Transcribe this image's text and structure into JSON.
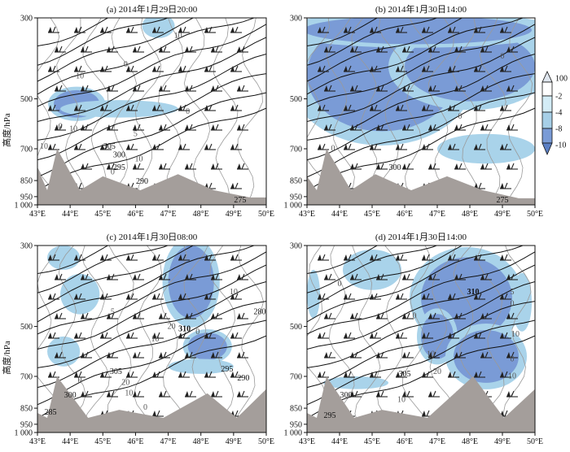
{
  "chart_data": [
    {
      "type": "contour",
      "title": "(a) 2014年1月29日20:00",
      "ylabel": "高度/hPa",
      "x_ticks": [
        "43°E",
        "44°E",
        "45°E",
        "46°E",
        "47°E",
        "48°E",
        "49°E",
        "50°E"
      ],
      "y_ticks": [
        "300",
        "500",
        "700",
        "850",
        "950",
        "1 000"
      ],
      "xlim": [
        43,
        50
      ],
      "ylim_hpa": [
        1000,
        300
      ],
      "shaded_regions": [
        {
          "center": [
            44.2,
            520
          ],
          "radius": [
            0.7,
            55
          ],
          "level": -8
        },
        {
          "center": [
            45.5,
            540
          ],
          "radius": [
            1.8,
            35
          ],
          "level": -4
        },
        {
          "center": [
            46.7,
            320
          ],
          "radius": [
            0.5,
            30
          ],
          "level": -4
        },
        {
          "center": [
            44.9,
            990
          ],
          "radius": [
            0.6,
            20
          ],
          "level": -8
        }
      ],
      "theta_labels": [
        {
          "text": "305",
          "at": [
            45.2,
            700
          ]
        },
        {
          "text": "300",
          "at": [
            45.5,
            740
          ]
        },
        {
          "text": "295",
          "at": [
            45.5,
            800
          ]
        },
        {
          "text": "290",
          "at": [
            46.2,
            870
          ]
        },
        {
          "text": "275",
          "at": [
            49.2,
            985
          ]
        }
      ],
      "omega_labels": [
        {
          "text": "10",
          "at": [
            47.3,
            350
          ]
        },
        {
          "text": "0",
          "at": [
            45.7,
            420
          ]
        },
        {
          "text": "10",
          "at": [
            44.3,
            450
          ]
        },
        {
          "text": "0",
          "at": [
            47.6,
            560
          ]
        },
        {
          "text": "0",
          "at": [
            43.7,
            620
          ]
        },
        {
          "text": "10",
          "at": [
            44.1,
            630
          ]
        },
        {
          "text": "5",
          "at": [
            46.0,
            650
          ]
        },
        {
          "text": "10",
          "at": [
            43.2,
            700
          ]
        },
        {
          "text": "10",
          "at": [
            46.1,
            760
          ]
        },
        {
          "text": "0",
          "at": [
            45.3,
            820
          ]
        }
      ],
      "terrain_peaks": [
        [
          43.0,
          790
        ],
        [
          43.6,
          700
        ],
        [
          45.0,
          830
        ],
        [
          47.3,
          820
        ],
        [
          49.5,
          955
        ]
      ]
    },
    {
      "type": "contour",
      "title": "(b) 2014年1月30日14:00",
      "ylabel": "",
      "x_ticks": [
        "43°E",
        "44°E",
        "45°E",
        "46°E",
        "47°E",
        "48°E",
        "49°E",
        "50°E"
      ],
      "y_ticks": [
        "300",
        "500",
        "700",
        "850",
        "950",
        "1 000"
      ],
      "xlim": [
        43,
        50
      ],
      "ylim_hpa": [
        1000,
        300
      ],
      "shaded_regions": [
        {
          "center": [
            45.3,
            440
          ],
          "radius": [
            2.3,
            190
          ],
          "level": -8
        },
        {
          "center": [
            48.0,
            420
          ],
          "radius": [
            2.0,
            90
          ],
          "level": -8
        },
        {
          "center": [
            46.4,
            330
          ],
          "radius": [
            3.5,
            35
          ],
          "level": -8
        },
        {
          "center": [
            48.5,
            700
          ],
          "radius": [
            1.5,
            70
          ],
          "level": -4
        },
        {
          "center": [
            48.5,
            990
          ],
          "radius": [
            0.8,
            20
          ],
          "level": -8
        }
      ],
      "theta_labels": [
        {
          "text": "300",
          "at": [
            45.7,
            800
          ]
        },
        {
          "text": "275",
          "at": [
            49.0,
            985
          ]
        }
      ],
      "omega_labels": [
        {
          "text": "0",
          "at": [
            49.0,
            400
          ]
        },
        {
          "text": "0",
          "at": [
            47.7,
            580
          ]
        },
        {
          "text": "0",
          "at": [
            43.8,
            710
          ]
        }
      ],
      "terrain_peaks": [
        [
          43.0,
          830
        ],
        [
          43.6,
          700
        ],
        [
          45.1,
          820
        ],
        [
          47.3,
          830
        ],
        [
          49.5,
          960
        ]
      ]
    },
    {
      "type": "contour",
      "title": "(c) 2014年1月30日08:00",
      "ylabel": "高度/hPa",
      "x_ticks": [
        "43°E",
        "44°E",
        "45°E",
        "46°E",
        "47°E",
        "48°E",
        "49°E",
        "50°E"
      ],
      "y_ticks": [
        "300",
        "500",
        "700",
        "850",
        "950",
        "1 000"
      ],
      "xlim": [
        43,
        50
      ],
      "ylim_hpa": [
        1000,
        300
      ],
      "shaded_regions": [
        {
          "center": [
            43.8,
            330
          ],
          "radius": [
            0.5,
            30
          ],
          "level": -4
        },
        {
          "center": [
            44.3,
            420
          ],
          "radius": [
            0.6,
            50
          ],
          "level": -4
        },
        {
          "center": [
            43.8,
            600
          ],
          "radius": [
            0.5,
            60
          ],
          "level": -4
        },
        {
          "center": [
            47.7,
            390
          ],
          "radius": [
            0.7,
            90
          ],
          "level": -8
        },
        {
          "center": [
            48.2,
            580
          ],
          "radius": [
            0.6,
            55
          ],
          "level": -8
        },
        {
          "center": [
            48.0,
            660
          ],
          "radius": [
            1.0,
            30
          ],
          "level": -4
        }
      ],
      "theta_labels": [
        {
          "text": "305",
          "at": [
            45.4,
            690
          ]
        },
        {
          "text": "300",
          "at": [
            44.0,
            800
          ]
        },
        {
          "text": "295",
          "at": [
            48.8,
            680
          ]
        },
        {
          "text": "290",
          "at": [
            49.3,
            720
          ]
        },
        {
          "text": "285",
          "at": [
            43.4,
            890
          ]
        },
        {
          "text": "310",
          "at": [
            47.5,
            520
          ]
        },
        {
          "text": "280",
          "at": [
            49.8,
            470
          ]
        }
      ],
      "omega_labels": [
        {
          "text": "10",
          "at": [
            49.0,
            420
          ]
        },
        {
          "text": "5",
          "at": [
            45.3,
            470
          ]
        },
        {
          "text": "20",
          "at": [
            47.1,
            510
          ]
        },
        {
          "text": "10",
          "at": [
            46.6,
            560
          ]
        },
        {
          "text": "0",
          "at": [
            47.9,
            530
          ]
        },
        {
          "text": "0",
          "at": [
            44.3,
            730
          ]
        },
        {
          "text": "20",
          "at": [
            45.7,
            740
          ]
        },
        {
          "text": "10",
          "at": [
            45.8,
            790
          ]
        },
        {
          "text": "0",
          "at": [
            46.3,
            860
          ]
        }
      ],
      "terrain_peaks": [
        [
          43.0,
          880
        ],
        [
          43.6,
          700
        ],
        [
          45.5,
          860
        ],
        [
          48.2,
          780
        ],
        [
          50.0,
          760
        ]
      ]
    },
    {
      "type": "contour",
      "title": "(d) 2014年1月30日14:00",
      "ylabel": "",
      "x_ticks": [
        "43°E",
        "44°E",
        "45°E",
        "46°E",
        "47°E",
        "48°E",
        "49°E",
        "50°E"
      ],
      "y_ticks": [
        "300",
        "500",
        "700",
        "850",
        "950",
        "1 000"
      ],
      "xlim": [
        43,
        50
      ],
      "ylim_hpa": [
        1000,
        300
      ],
      "shaded_regions": [
        {
          "center": [
            47.9,
            430
          ],
          "radius": [
            1.4,
            120
          ],
          "level": -8
        },
        {
          "center": [
            47.0,
            540
          ],
          "radius": [
            0.5,
            90
          ],
          "level": -8
        },
        {
          "center": [
            48.5,
            620
          ],
          "radius": [
            1.0,
            110
          ],
          "level": -8
        },
        {
          "center": [
            45.0,
            360
          ],
          "radius": [
            0.9,
            50
          ],
          "level": -4
        },
        {
          "center": [
            43.2,
            420
          ],
          "radius": [
            0.2,
            60
          ],
          "level": -4
        },
        {
          "center": [
            49.6,
            440
          ],
          "radius": [
            0.3,
            80
          ],
          "level": -4
        },
        {
          "center": [
            44.5,
            730
          ],
          "radius": [
            1.0,
            30
          ],
          "level": -4
        }
      ],
      "theta_labels": [
        {
          "text": "310",
          "at": [
            48.1,
            420
          ]
        },
        {
          "text": "305",
          "at": [
            46.0,
            700
          ]
        },
        {
          "text": "300",
          "at": [
            44.2,
            800
          ]
        },
        {
          "text": "295",
          "at": [
            43.7,
            910
          ]
        }
      ],
      "omega_labels": [
        {
          "text": "0",
          "at": [
            44.0,
            400
          ]
        },
        {
          "text": "5",
          "at": [
            49.3,
            420
          ]
        },
        {
          "text": "0",
          "at": [
            49.3,
            450
          ]
        },
        {
          "text": "0",
          "at": [
            46.3,
            480
          ]
        },
        {
          "text": "10",
          "at": [
            49.4,
            540
          ]
        },
        {
          "text": "10",
          "at": [
            46.8,
            620
          ]
        },
        {
          "text": "0",
          "at": [
            49.3,
            640
          ]
        },
        {
          "text": "20",
          "at": [
            47.0,
            690
          ]
        },
        {
          "text": "10",
          "at": [
            49.3,
            710
          ]
        },
        {
          "text": "10",
          "at": [
            45.9,
            820
          ]
        }
      ],
      "terrain_peaks": [
        [
          43.0,
          880
        ],
        [
          43.6,
          700
        ],
        [
          45.3,
          860
        ],
        [
          48.1,
          700
        ],
        [
          50.0,
          760
        ]
      ]
    }
  ],
  "colorbar": {
    "labels": [
      "100",
      "-2",
      "-4",
      "-8",
      "-10"
    ],
    "colors": [
      "#ffffff",
      "#d3ecf6",
      "#a6cfe7",
      "#7a9bd6",
      "#5b7fc4"
    ]
  },
  "colors": {
    "terrain": "#a49e9b",
    "theta": "#111111",
    "omega": "#9a9a9a"
  }
}
